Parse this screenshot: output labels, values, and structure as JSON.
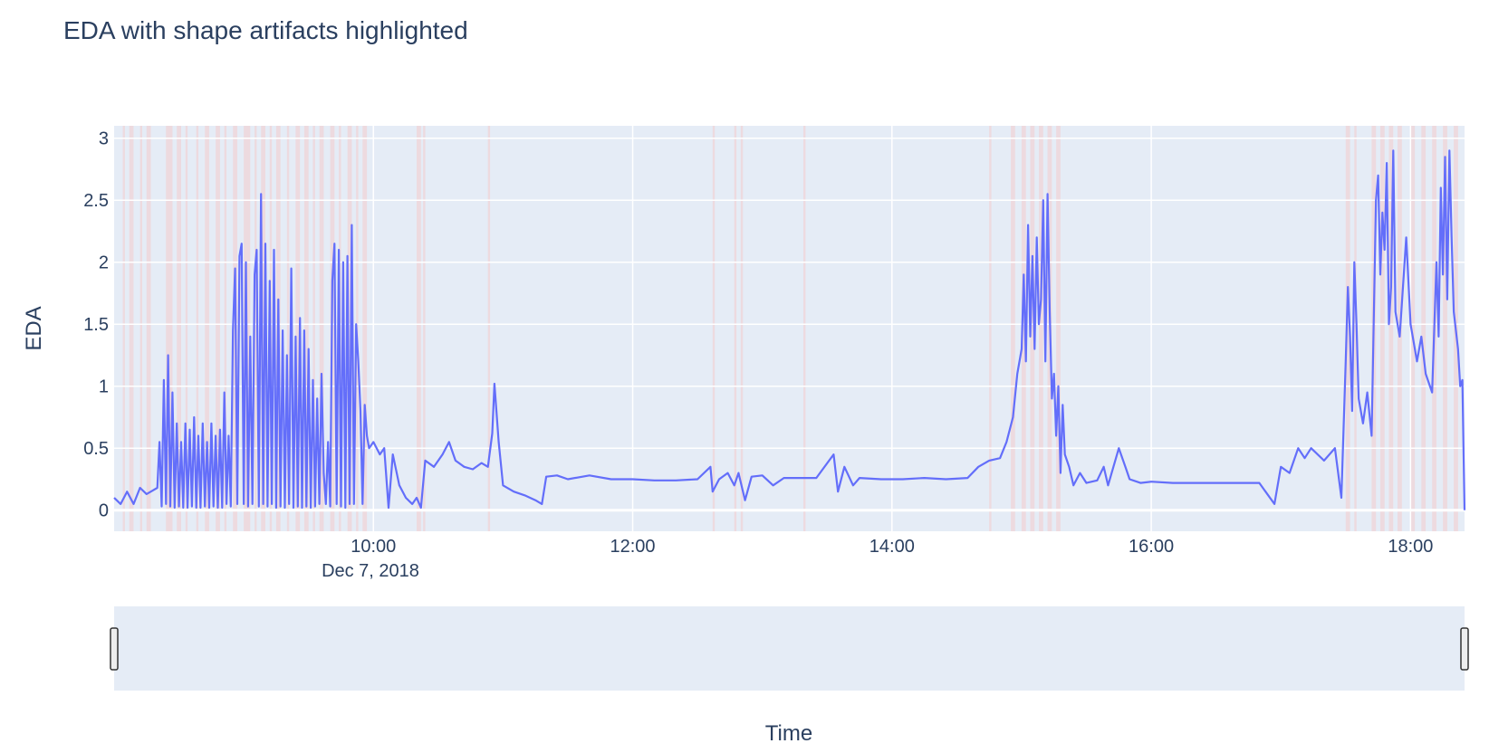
{
  "chart_data": {
    "type": "line",
    "title": "EDA with shape artifacts highlighted",
    "xlabel": "Time",
    "ylabel": "EDA",
    "x_tick_labels": [
      "10:00",
      "12:00",
      "14:00",
      "16:00",
      "18:00"
    ],
    "x_date_label": "Dec 7, 2018",
    "y_tick_labels": [
      "0",
      "0.5",
      "1",
      "1.5",
      "2",
      "2.5",
      "3"
    ],
    "x_range": [
      "2018-12-07 08:00",
      "2018-12-07 18:25"
    ],
    "ylim": [
      -0.17,
      3.1
    ],
    "grid": true,
    "legend": "none",
    "range_slider": true,
    "colors": {
      "line": "#636efa",
      "plot_bg": "#e5ecf6",
      "artifact": "#f4cccc",
      "grid": "#ffffff"
    },
    "artifact_regions": [
      [
        "08:04",
        "08:05"
      ],
      [
        "08:07",
        "08:09"
      ],
      [
        "08:12",
        "08:13"
      ],
      [
        "08:15",
        "08:17"
      ],
      [
        "08:24",
        "08:27"
      ],
      [
        "08:29",
        "08:31"
      ],
      [
        "08:33",
        "08:34"
      ],
      [
        "08:38",
        "08:39"
      ],
      [
        "08:42",
        "08:44"
      ],
      [
        "08:47",
        "08:49"
      ],
      [
        "08:51",
        "08:52"
      ],
      [
        "08:55",
        "08:57"
      ],
      [
        "09:00",
        "09:03"
      ],
      [
        "09:05",
        "09:06"
      ],
      [
        "09:08",
        "09:10"
      ],
      [
        "09:12",
        "09:13"
      ],
      [
        "09:15",
        "09:17"
      ],
      [
        "09:20",
        "09:21"
      ],
      [
        "09:24",
        "09:26"
      ],
      [
        "09:28",
        "09:30"
      ],
      [
        "09:32",
        "09:33"
      ],
      [
        "09:35",
        "09:37"
      ],
      [
        "09:40",
        "09:42"
      ],
      [
        "09:44",
        "09:45"
      ],
      [
        "09:48",
        "09:50"
      ],
      [
        "09:52",
        "09:53"
      ],
      [
        "09:55",
        "09:57"
      ],
      [
        "10:20",
        "10:22"
      ],
      [
        "10:23",
        "10:24"
      ],
      [
        "10:53",
        "10:54"
      ],
      [
        "12:37",
        "12:38"
      ],
      [
        "12:47",
        "12:48"
      ],
      [
        "12:50",
        "12:51"
      ],
      [
        "13:19",
        "13:20"
      ],
      [
        "14:45",
        "14:46"
      ],
      [
        "14:55",
        "14:57"
      ],
      [
        "15:00",
        "15:02"
      ],
      [
        "15:04",
        "15:06"
      ],
      [
        "15:08",
        "15:10"
      ],
      [
        "15:12",
        "15:14"
      ],
      [
        "15:16",
        "15:18"
      ],
      [
        "17:30",
        "17:32"
      ],
      [
        "17:34",
        "17:35"
      ],
      [
        "17:42",
        "17:44"
      ],
      [
        "17:46",
        "17:48"
      ],
      [
        "17:50",
        "17:52"
      ],
      [
        "17:54",
        "17:56"
      ],
      [
        "18:00",
        "18:02"
      ],
      [
        "18:05",
        "18:07"
      ],
      [
        "18:10",
        "18:12"
      ],
      [
        "18:15",
        "18:17"
      ],
      [
        "18:20",
        "18:22"
      ]
    ],
    "series": [
      {
        "values": [
          [
            "08:00",
            0.1
          ],
          [
            "08:03",
            0.05
          ],
          [
            "08:06",
            0.15
          ],
          [
            "08:09",
            0.05
          ],
          [
            "08:12",
            0.18
          ],
          [
            "08:15",
            0.13
          ],
          [
            "08:18",
            0.16
          ],
          [
            "08:20",
            0.18
          ],
          [
            "08:21",
            0.55
          ],
          [
            "08:22",
            0.03
          ],
          [
            "08:23",
            1.05
          ],
          [
            "08:24",
            0.05
          ],
          [
            "08:25",
            1.25
          ],
          [
            "08:26",
            0.03
          ],
          [
            "08:27",
            0.95
          ],
          [
            "08:28",
            0.02
          ],
          [
            "08:29",
            0.7
          ],
          [
            "08:30",
            0.03
          ],
          [
            "08:31",
            0.55
          ],
          [
            "08:32",
            0.02
          ],
          [
            "08:33",
            0.7
          ],
          [
            "08:34",
            0.02
          ],
          [
            "08:35",
            0.65
          ],
          [
            "08:36",
            0.03
          ],
          [
            "08:37",
            0.75
          ],
          [
            "08:38",
            0.02
          ],
          [
            "08:39",
            0.6
          ],
          [
            "08:40",
            0.02
          ],
          [
            "08:41",
            0.7
          ],
          [
            "08:42",
            0.03
          ],
          [
            "08:43",
            0.55
          ],
          [
            "08:44",
            0.02
          ],
          [
            "08:45",
            0.7
          ],
          [
            "08:46",
            0.03
          ],
          [
            "08:47",
            0.6
          ],
          [
            "08:48",
            0.02
          ],
          [
            "08:49",
            0.65
          ],
          [
            "08:50",
            0.02
          ],
          [
            "08:51",
            0.95
          ],
          [
            "08:52",
            0.05
          ],
          [
            "08:53",
            0.6
          ],
          [
            "08:54",
            0.03
          ],
          [
            "08:55",
            1.45
          ],
          [
            "08:56",
            1.95
          ],
          [
            "08:57",
            0.05
          ],
          [
            "08:58",
            2.05
          ],
          [
            "08:59",
            2.15
          ],
          [
            "09:00",
            0.05
          ],
          [
            "09:01",
            2.0
          ],
          [
            "09:02",
            0.03
          ],
          [
            "09:03",
            1.4
          ],
          [
            "09:04",
            0.05
          ],
          [
            "09:05",
            1.9
          ],
          [
            "09:06",
            2.1
          ],
          [
            "09:07",
            0.03
          ],
          [
            "09:08",
            2.55
          ],
          [
            "09:09",
            0.05
          ],
          [
            "09:10",
            2.15
          ],
          [
            "09:11",
            0.03
          ],
          [
            "09:12",
            1.85
          ],
          [
            "09:13",
            0.05
          ],
          [
            "09:14",
            2.1
          ],
          [
            "09:15",
            0.02
          ],
          [
            "09:16",
            1.7
          ],
          [
            "09:17",
            0.03
          ],
          [
            "09:18",
            1.45
          ],
          [
            "09:19",
            0.02
          ],
          [
            "09:20",
            1.25
          ],
          [
            "09:21",
            0.05
          ],
          [
            "09:22",
            1.95
          ],
          [
            "09:23",
            0.02
          ],
          [
            "09:24",
            1.4
          ],
          [
            "09:25",
            0.03
          ],
          [
            "09:26",
            1.55
          ],
          [
            "09:27",
            0.02
          ],
          [
            "09:28",
            1.45
          ],
          [
            "09:29",
            0.03
          ],
          [
            "09:30",
            1.3
          ],
          [
            "09:31",
            0.02
          ],
          [
            "09:32",
            1.05
          ],
          [
            "09:33",
            0.03
          ],
          [
            "09:34",
            0.9
          ],
          [
            "09:35",
            0.05
          ],
          [
            "09:36",
            1.1
          ],
          [
            "09:37",
            0.3
          ],
          [
            "09:38",
            0.05
          ],
          [
            "09:39",
            0.55
          ],
          [
            "09:40",
            0.03
          ],
          [
            "09:41",
            1.85
          ],
          [
            "09:42",
            2.15
          ],
          [
            "09:43",
            0.05
          ],
          [
            "09:44",
            2.1
          ],
          [
            "09:45",
            0.03
          ],
          [
            "09:46",
            2.0
          ],
          [
            "09:47",
            0.02
          ],
          [
            "09:48",
            2.05
          ],
          [
            "09:49",
            0.05
          ],
          [
            "09:50",
            2.3
          ],
          [
            "09:51",
            0.05
          ],
          [
            "09:52",
            1.5
          ],
          [
            "09:53",
            1.2
          ],
          [
            "09:54",
            0.8
          ],
          [
            "09:55",
            0.05
          ],
          [
            "09:56",
            0.85
          ],
          [
            "09:57",
            0.6
          ],
          [
            "09:58",
            0.5
          ],
          [
            "10:00",
            0.55
          ],
          [
            "10:03",
            0.45
          ],
          [
            "10:05",
            0.5
          ],
          [
            "10:07",
            0.02
          ],
          [
            "10:09",
            0.45
          ],
          [
            "10:12",
            0.2
          ],
          [
            "10:15",
            0.1
          ],
          [
            "10:18",
            0.05
          ],
          [
            "10:20",
            0.1
          ],
          [
            "10:22",
            0.02
          ],
          [
            "10:24",
            0.4
          ],
          [
            "10:28",
            0.35
          ],
          [
            "10:32",
            0.45
          ],
          [
            "10:35",
            0.55
          ],
          [
            "10:38",
            0.4
          ],
          [
            "10:42",
            0.35
          ],
          [
            "10:46",
            0.33
          ],
          [
            "10:50",
            0.38
          ],
          [
            "10:53",
            0.35
          ],
          [
            "10:55",
            0.62
          ],
          [
            "10:56",
            1.02
          ],
          [
            "10:58",
            0.55
          ],
          [
            "11:00",
            0.2
          ],
          [
            "11:05",
            0.15
          ],
          [
            "11:10",
            0.12
          ],
          [
            "11:15",
            0.08
          ],
          [
            "11:18",
            0.05
          ],
          [
            "11:20",
            0.27
          ],
          [
            "11:25",
            0.28
          ],
          [
            "11:30",
            0.25
          ],
          [
            "11:40",
            0.28
          ],
          [
            "11:50",
            0.25
          ],
          [
            "12:00",
            0.25
          ],
          [
            "12:10",
            0.24
          ],
          [
            "12:20",
            0.24
          ],
          [
            "12:30",
            0.25
          ],
          [
            "12:36",
            0.35
          ],
          [
            "12:37",
            0.15
          ],
          [
            "12:40",
            0.25
          ],
          [
            "12:44",
            0.3
          ],
          [
            "12:47",
            0.2
          ],
          [
            "12:49",
            0.3
          ],
          [
            "12:52",
            0.08
          ],
          [
            "12:55",
            0.27
          ],
          [
            "13:00",
            0.28
          ],
          [
            "13:05",
            0.2
          ],
          [
            "13:10",
            0.26
          ],
          [
            "13:20",
            0.26
          ],
          [
            "13:25",
            0.26
          ],
          [
            "13:33",
            0.45
          ],
          [
            "13:35",
            0.15
          ],
          [
            "13:38",
            0.35
          ],
          [
            "13:42",
            0.2
          ],
          [
            "13:45",
            0.26
          ],
          [
            "13:55",
            0.25
          ],
          [
            "14:05",
            0.25
          ],
          [
            "14:15",
            0.26
          ],
          [
            "14:25",
            0.25
          ],
          [
            "14:35",
            0.26
          ],
          [
            "14:40",
            0.35
          ],
          [
            "14:45",
            0.4
          ],
          [
            "14:50",
            0.42
          ],
          [
            "14:53",
            0.55
          ],
          [
            "14:56",
            0.75
          ],
          [
            "14:58",
            1.1
          ],
          [
            "15:00",
            1.3
          ],
          [
            "15:01",
            1.9
          ],
          [
            "15:02",
            1.2
          ],
          [
            "15:03",
            2.3
          ],
          [
            "15:04",
            1.4
          ],
          [
            "15:05",
            2.05
          ],
          [
            "15:06",
            1.3
          ],
          [
            "15:07",
            2.2
          ],
          [
            "15:08",
            1.5
          ],
          [
            "15:09",
            1.7
          ],
          [
            "15:10",
            2.5
          ],
          [
            "15:11",
            1.2
          ],
          [
            "15:12",
            2.55
          ],
          [
            "15:13",
            1.6
          ],
          [
            "15:14",
            0.9
          ],
          [
            "15:15",
            1.1
          ],
          [
            "15:16",
            0.6
          ],
          [
            "15:17",
            1.0
          ],
          [
            "15:18",
            0.3
          ],
          [
            "15:19",
            0.85
          ],
          [
            "15:20",
            0.45
          ],
          [
            "15:22",
            0.35
          ],
          [
            "15:24",
            0.2
          ],
          [
            "15:27",
            0.3
          ],
          [
            "15:30",
            0.22
          ],
          [
            "15:35",
            0.24
          ],
          [
            "15:38",
            0.35
          ],
          [
            "15:40",
            0.2
          ],
          [
            "15:45",
            0.5
          ],
          [
            "15:48",
            0.35
          ],
          [
            "15:50",
            0.25
          ],
          [
            "15:55",
            0.22
          ],
          [
            "16:00",
            0.23
          ],
          [
            "16:10",
            0.22
          ],
          [
            "16:20",
            0.22
          ],
          [
            "16:30",
            0.22
          ],
          [
            "16:40",
            0.22
          ],
          [
            "16:50",
            0.22
          ],
          [
            "16:57",
            0.05
          ],
          [
            "17:00",
            0.35
          ],
          [
            "17:04",
            0.3
          ],
          [
            "17:08",
            0.5
          ],
          [
            "17:11",
            0.42
          ],
          [
            "17:14",
            0.5
          ],
          [
            "17:20",
            0.4
          ],
          [
            "17:25",
            0.5
          ],
          [
            "17:28",
            0.1
          ],
          [
            "17:29",
            0.65
          ],
          [
            "17:30",
            1.2
          ],
          [
            "17:31",
            1.8
          ],
          [
            "17:32",
            1.4
          ],
          [
            "17:33",
            0.8
          ],
          [
            "17:34",
            2.0
          ],
          [
            "17:35",
            1.5
          ],
          [
            "17:36",
            0.9
          ],
          [
            "17:38",
            0.7
          ],
          [
            "17:40",
            0.95
          ],
          [
            "17:42",
            0.6
          ],
          [
            "17:44",
            2.5
          ],
          [
            "17:45",
            2.7
          ],
          [
            "17:46",
            1.9
          ],
          [
            "17:47",
            2.4
          ],
          [
            "17:48",
            2.1
          ],
          [
            "17:49",
            2.8
          ],
          [
            "17:50",
            1.5
          ],
          [
            "17:51",
            1.8
          ],
          [
            "17:52",
            2.9
          ],
          [
            "17:53",
            1.6
          ],
          [
            "17:55",
            1.4
          ],
          [
            "17:58",
            2.2
          ],
          [
            "18:00",
            1.5
          ],
          [
            "18:03",
            1.2
          ],
          [
            "18:05",
            1.4
          ],
          [
            "18:07",
            1.1
          ],
          [
            "18:10",
            0.95
          ],
          [
            "18:12",
            2.0
          ],
          [
            "18:13",
            1.4
          ],
          [
            "18:14",
            2.6
          ],
          [
            "18:15",
            1.9
          ],
          [
            "18:16",
            2.85
          ],
          [
            "18:17",
            1.7
          ],
          [
            "18:18",
            2.9
          ],
          [
            "18:19",
            2.2
          ],
          [
            "18:20",
            1.6
          ],
          [
            "18:22",
            1.3
          ],
          [
            "18:23",
            1.0
          ],
          [
            "18:24",
            1.05
          ],
          [
            "18:25",
            0.0
          ]
        ]
      }
    ]
  }
}
